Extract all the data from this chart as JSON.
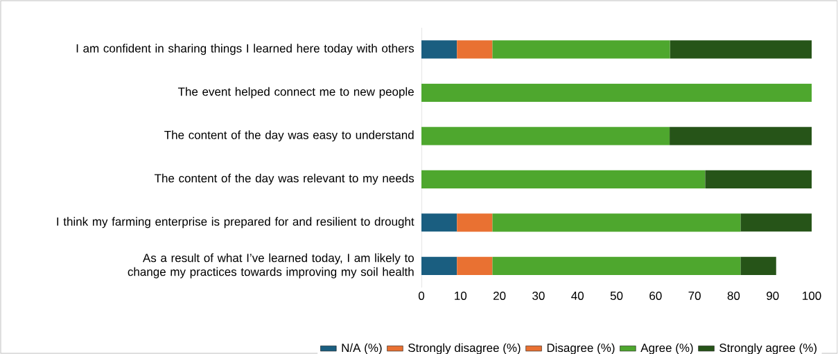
{
  "chart_data": {
    "type": "bar",
    "orientation": "horizontal",
    "stacked": true,
    "categories": [
      "I am confident in sharing things I learned here today with others",
      "The event helped connect me to new people",
      "The content of the day was easy to understand",
      "The content of the day was relevant to my needs",
      "I think my farming enterprise is prepared for and resilient to drought",
      "As a result of what I’ve learned today, I am likely to change my practices towards improving my soil health"
    ],
    "series": [
      {
        "name": "N/A (%)",
        "color": "#1a5e80",
        "values": [
          9.1,
          0,
          0,
          0,
          9.1,
          9.1
        ]
      },
      {
        "name": "Strongly disagree (%)",
        "color": "#e97132",
        "values": [
          0,
          0,
          0,
          0,
          0,
          0
        ]
      },
      {
        "name": "Disagree (%)",
        "color": "#e97132",
        "values": [
          9.1,
          0,
          0,
          0,
          9.1,
          9.1
        ]
      },
      {
        "name": "Agree (%)",
        "color": "#4ea72e",
        "values": [
          45.5,
          100,
          63.6,
          72.7,
          63.6,
          63.6
        ]
      },
      {
        "name": "Strongly agree (%)",
        "color": "#265418",
        "values": [
          36.4,
          0,
          36.4,
          27.3,
          18.2,
          9.1
        ]
      }
    ],
    "xlim": [
      0,
      100
    ],
    "xticks": [
      0,
      10,
      20,
      30,
      40,
      50,
      60,
      70,
      80,
      90,
      100
    ],
    "grid": false,
    "legend": "bottom"
  }
}
